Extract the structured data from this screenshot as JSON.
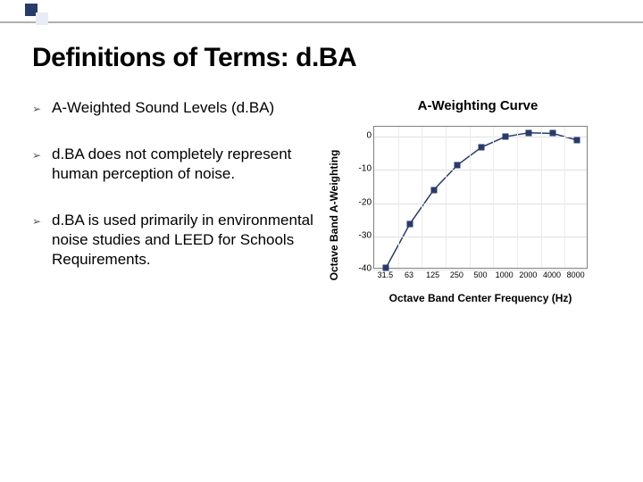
{
  "title": "Definitions of Terms: d.BA",
  "bullet_icon": "➢",
  "bullets": [
    "A-Weighted Sound Levels (d.BA)",
    "d.BA does not completely represent human perception of noise.",
    "d.BA is used primarily in environmental noise studies and LEED for Schools Requirements."
  ],
  "chart": {
    "title": "A-Weighting Curve",
    "y_label": "Octave Band A-Weighting",
    "x_label": "Octave Band Center Frequency (Hz)",
    "ylim": [
      -40,
      3
    ],
    "y_ticks": [
      0,
      -10,
      -20,
      -30,
      -40
    ],
    "x_categories": [
      "31.5",
      "63",
      "125",
      "250",
      "500",
      "1000",
      "2000",
      "4000",
      "8000"
    ],
    "values": [
      -39.4,
      -26.2,
      -16.0,
      -8.5,
      -3.2,
      0,
      1.2,
      1.0,
      -1.0
    ],
    "marker_color": "#293b6c",
    "line_color": "#293b6c",
    "grid_color": "#e0e0e0",
    "border_color": "#808080",
    "background_color": "#ffffff"
  },
  "accent": {
    "dark": "#293b6c",
    "light": "#e7ecf7"
  }
}
